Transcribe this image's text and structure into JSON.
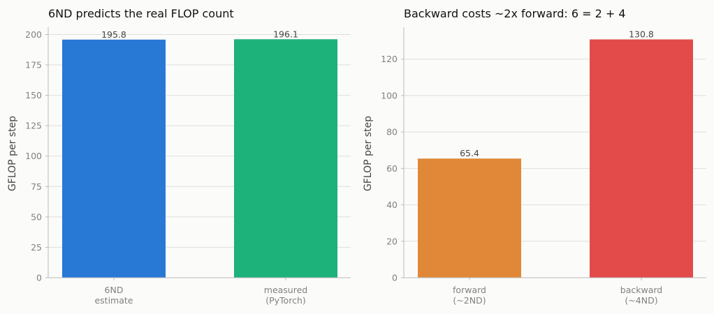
{
  "chart_data": [
    {
      "type": "bar",
      "title": "6ND predicts the real FLOP count",
      "xlabel": "",
      "ylabel": "GFLOP per step",
      "categories": [
        "6ND\nestimate",
        "measured\n(PyTorch)"
      ],
      "values": [
        195.8,
        196.1
      ],
      "value_labels": [
        "195.8",
        "196.1"
      ],
      "colors": [
        "#2878d6",
        "#1cb27a"
      ],
      "ylim": [
        0,
        206
      ],
      "yticks": [
        0,
        25,
        50,
        75,
        100,
        125,
        150,
        175,
        200
      ],
      "grid": "horizontal"
    },
    {
      "type": "bar",
      "title": "Backward costs ~2x forward: 6 = 2 + 4",
      "xlabel": "",
      "ylabel": "GFLOP per step",
      "categories": [
        "forward\n(~2ND)",
        "backward\n(~4ND)"
      ],
      "values": [
        65.4,
        130.8
      ],
      "value_labels": [
        "65.4",
        "130.8"
      ],
      "colors": [
        "#e08838",
        "#e24b4a"
      ],
      "ylim": [
        0,
        137.5
      ],
      "yticks": [
        0,
        20,
        40,
        60,
        80,
        100,
        120
      ],
      "grid": "horizontal"
    }
  ]
}
